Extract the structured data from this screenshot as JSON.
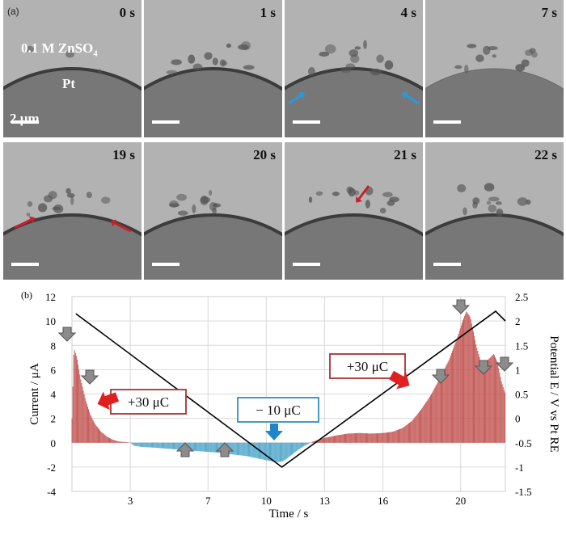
{
  "panel_a": {
    "label": "(a)",
    "electrolyte": "0.1 M ZnSO",
    "electrolyte_sub": "4",
    "electrode": "Pt",
    "scale": "2 μm",
    "frames": [
      {
        "time": "0 s"
      },
      {
        "time": "1 s"
      },
      {
        "time": "4 s"
      },
      {
        "time": "7 s"
      },
      {
        "time": "19 s"
      },
      {
        "time": "20 s"
      },
      {
        "time": "21 s"
      },
      {
        "time": "22 s"
      }
    ],
    "colors": {
      "blue_arrow": "#2a9ad6",
      "red_arrow": "#c6202c"
    }
  },
  "panel_b": {
    "label": "(b)"
  },
  "chart_data": {
    "type": "bar",
    "xlabel": "Time / s",
    "ylabel": "Current / μA",
    "ylabel_right": "Potential E / V vs Pt RE",
    "xticks": [
      3,
      7,
      10,
      13,
      16,
      20
    ],
    "xlim": [
      0,
      22.3
    ],
    "ylim": [
      -4,
      12
    ],
    "yticks": [
      -4,
      -2,
      0,
      2,
      4,
      6,
      8,
      10,
      12
    ],
    "ylim_right": [
      -1.5,
      2.5
    ],
    "yticks_right": [
      -1.5,
      -1,
      -0.5,
      0,
      0.5,
      1,
      1.5,
      2,
      2.5
    ],
    "grid": true,
    "series": [
      {
        "kind": "current",
        "color_positive": "#c0504d",
        "color_negative": "#4aa3c8",
        "x": [
          0,
          0.1,
          0.25,
          0.45,
          0.7,
          0.95,
          1.2,
          1.5,
          1.8,
          2.1,
          2.4,
          2.8,
          3.0,
          3.2,
          3.6,
          4.2,
          5.0,
          5.8,
          6.6,
          7.4,
          8.2,
          9.0,
          9.6,
          10.2,
          10.6,
          10.9,
          11.3,
          11.8,
          12.4,
          13.0,
          13.6,
          14.2,
          14.8,
          15.4,
          16.0,
          16.5,
          17.0,
          17.5,
          18.0,
          18.5,
          19.0,
          19.4,
          19.8,
          20.1,
          20.3,
          20.5,
          20.8,
          21.1,
          21.4,
          21.7,
          21.9,
          22.1,
          22.3
        ],
        "y": [
          2.0,
          7.8,
          7.0,
          5.2,
          3.5,
          2.3,
          1.5,
          0.9,
          0.5,
          0.25,
          0.1,
          0.05,
          0.0,
          -0.25,
          -0.35,
          -0.4,
          -0.5,
          -0.6,
          -0.7,
          -0.8,
          -0.95,
          -1.1,
          -1.3,
          -1.5,
          -1.6,
          -1.5,
          -1.0,
          -0.4,
          0.1,
          0.4,
          0.6,
          0.75,
          0.8,
          0.75,
          0.8,
          0.9,
          1.2,
          1.8,
          2.8,
          4.0,
          5.5,
          6.8,
          8.5,
          10.0,
          10.8,
          10.3,
          8.0,
          6.3,
          6.8,
          7.3,
          6.6,
          5.0,
          4.0
        ]
      },
      {
        "kind": "potential",
        "color": "#000000",
        "x": [
          0.2,
          10.8,
          21.8,
          22.3
        ],
        "y": [
          2.15,
          -1.0,
          2.2,
          2.0
        ]
      }
    ],
    "annotations": [
      {
        "text": "+30 μC",
        "box_color": "#a83232"
      },
      {
        "text": "+30 μC",
        "box_color": "#a83232"
      },
      {
        "text": "− 10 μC",
        "box_color": "#2f8fc0"
      }
    ]
  }
}
